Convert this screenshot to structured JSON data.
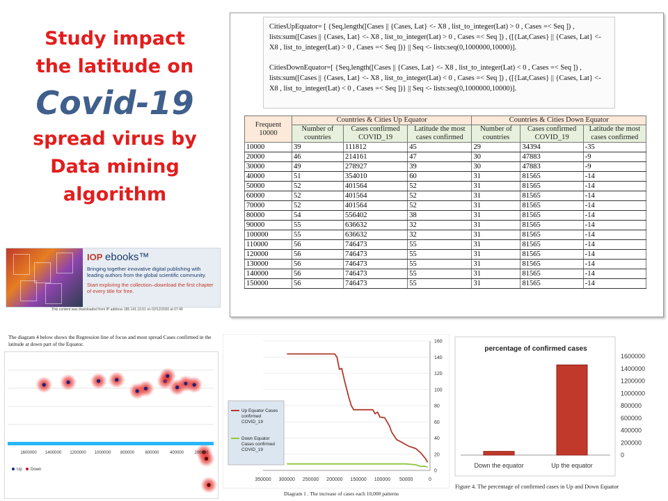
{
  "title": {
    "line1": "Study impact",
    "line2": "the latitude on",
    "line3": "Covid-19",
    "line4": "spread virus by",
    "line5": "Data mining",
    "line6": "algorithm"
  },
  "iop_banner": {
    "brand_iop": "IOP",
    "brand_ebooks": "ebooks™",
    "text1": "Bringing together innovative digital publishing with leading authors from the global scientific community.",
    "text2": "Start exploring the collection–download the first chapter of every title for free.",
    "footer": "This content was downloaded from IP address 185.141.10.61 on 02/12/2020 at 07:49"
  },
  "formula": {
    "up": "CitiesUpEquator= [ {Seq,length([Cases || {Cases, Lat} <- X8 , list_to_integer(Lat) > 0 , Cases =< Seq ]) , lists:sum([Cases || {Cases, Lat} <- X8 , list_to_integer(Lat) > 0 , Cases =< Seq ]) , ([{Lat,Cases} || {Cases, Lat} <- X8 , list_to_integer(Lat) > 0 , Cases =< Seq ])} || Seq <- lists:seq(0,1000000,10000)].",
    "down": "CitiesDownEquator=[ {Seq,length([Cases || {Cases, Lat} <- X8 , list_to_integer(Lat) < 0 , Cases =< Seq ]) , lists:sum([Cases || {Cases, Lat} <- X8 , list_to_integer(Lat) < 0 , Cases =< Seq ]) , ([{Lat,Cases} || {Cases, Lat} <- X8 , list_to_integer(Lat) < 0 , Cases =< Seq ])} || Seq <- lists:seq(0,1000000,10000)]."
  },
  "table": {
    "corner": "Frequent 10000",
    "group_up": "Countries & Cities Up Equator",
    "group_down": "Countries & Cities Down Equator",
    "sub_headers": [
      "Number of countries",
      "Cases confirmed COVID_19",
      "Latitude the most cases confirmed",
      "Number of countries",
      "Cases confirmed COVID_19",
      "Latitude the most cases confirmed"
    ],
    "rows": [
      [
        "10000",
        "39",
        "111812",
        "45",
        "29",
        "34394",
        "-35"
      ],
      [
        "20000",
        "46",
        "214161",
        "47",
        "30",
        "47883",
        "-9"
      ],
      [
        "30000",
        "49",
        "278927",
        "39",
        "30",
        "47883",
        "-9"
      ],
      [
        "40000",
        "51",
        "354010",
        "60",
        "31",
        "81565",
        "-14"
      ],
      [
        "50000",
        "52",
        "401564",
        "52",
        "31",
        "81565",
        "-14"
      ],
      [
        "60000",
        "52",
        "401564",
        "52",
        "31",
        "81565",
        "-14"
      ],
      [
        "70000",
        "52",
        "401564",
        "52",
        "31",
        "81565",
        "-14"
      ],
      [
        "80000",
        "54",
        "556402",
        "38",
        "31",
        "81565",
        "-14"
      ],
      [
        "90000",
        "55",
        "636632",
        "32",
        "31",
        "81565",
        "-14"
      ],
      [
        "100000",
        "55",
        "636632",
        "32",
        "31",
        "81565",
        "-14"
      ],
      [
        "110000",
        "56",
        "746473",
        "55",
        "31",
        "81565",
        "-14"
      ],
      [
        "120000",
        "56",
        "746473",
        "55",
        "31",
        "81565",
        "-14"
      ],
      [
        "130000",
        "56",
        "746473",
        "55",
        "31",
        "81565",
        "-14"
      ],
      [
        "140000",
        "56",
        "746473",
        "55",
        "31",
        "81565",
        "-14"
      ],
      [
        "150000",
        "56",
        "746473",
        "55",
        "31",
        "81565",
        "-14"
      ]
    ]
  },
  "regression": {
    "caption": "The diagram 4 below shows the Regression line of focus and most spread Cases confirmed in the latitude at down part of the Equator.",
    "x_ticks": [
      "1600000",
      "1400000",
      "1200000",
      "1000000",
      "800000",
      "600000",
      "400000",
      "200000"
    ],
    "legend_up": "Up",
    "legend_down": "Down"
  },
  "chart_data": [
    {
      "type": "scatter",
      "title": "",
      "series": [
        {
          "name": "Up",
          "points": [
            [
              1400000,
              45
            ],
            [
              1200000,
              47
            ],
            [
              950000,
              48
            ],
            [
              800000,
              49
            ],
            [
              630000,
              40
            ],
            [
              560000,
              42
            ],
            [
              400000,
              48
            ],
            [
              380000,
              52
            ],
            [
              300000,
              43
            ],
            [
              230000,
              46
            ],
            [
              160000,
              45
            ]
          ]
        },
        {
          "name": "Down",
          "points": [
            [
              80000,
              -9
            ],
            [
              60000,
              -14
            ],
            [
              40000,
              -35
            ]
          ]
        }
      ],
      "xlim": [
        1700000,
        0
      ],
      "ylim": [
        -40,
        60
      ]
    },
    {
      "type": "line",
      "title": "",
      "caption": "Diagram 1 . The increase of cases each 10,000 patterns",
      "x_ticks": [
        "350000",
        "300000",
        "250000",
        "200000",
        "150000",
        "100000",
        "50000",
        "0"
      ],
      "y_ticks": [
        "0",
        "20",
        "40",
        "60",
        "80",
        "100",
        "120",
        "140",
        "160"
      ],
      "xlim": [
        350000,
        0
      ],
      "ylim": [
        0,
        160
      ],
      "series": [
        {
          "name": "Up Equator Cases confirmed COVID_19",
          "color": "#b03a2e",
          "x": [
            300000,
            260000,
            200000,
            195000,
            190000,
            185000,
            182000,
            178000,
            170000,
            165000,
            160000,
            155000,
            140000,
            120000,
            115000,
            110000,
            105000,
            95000,
            85000,
            80000,
            70000,
            60000,
            45000,
            30000,
            20000,
            10000,
            5000
          ],
          "y": [
            144,
            144,
            144,
            140,
            125,
            126,
            118,
            108,
            90,
            80,
            75,
            75,
            75,
            75,
            70,
            72,
            66,
            65,
            55,
            47,
            38,
            35,
            30,
            27,
            22,
            15,
            10
          ]
        },
        {
          "name": "Down Equator Cases confirmed COVID_19",
          "color": "#8dc63f",
          "x": [
            300000,
            250000,
            200000,
            150000,
            100000,
            50000,
            30000,
            20000,
            10000,
            5000
          ],
          "y": [
            8,
            8,
            8,
            8,
            8,
            8,
            7,
            5,
            5,
            4
          ]
        }
      ]
    },
    {
      "type": "bar",
      "title": "percentage of confirmed cases",
      "caption": "Figure 4. The percentage of confirmed cases in Up and Down Equator",
      "categories": [
        "Down the equator",
        "Up the equator"
      ],
      "values": [
        60000,
        1460000
      ],
      "y_ticks": [
        "0",
        "200000",
        "400000",
        "600000",
        "800000",
        "1000000",
        "1200000",
        "1400000",
        "1600000"
      ],
      "ylim": [
        0,
        1600000
      ],
      "color": "#c0392b"
    }
  ]
}
